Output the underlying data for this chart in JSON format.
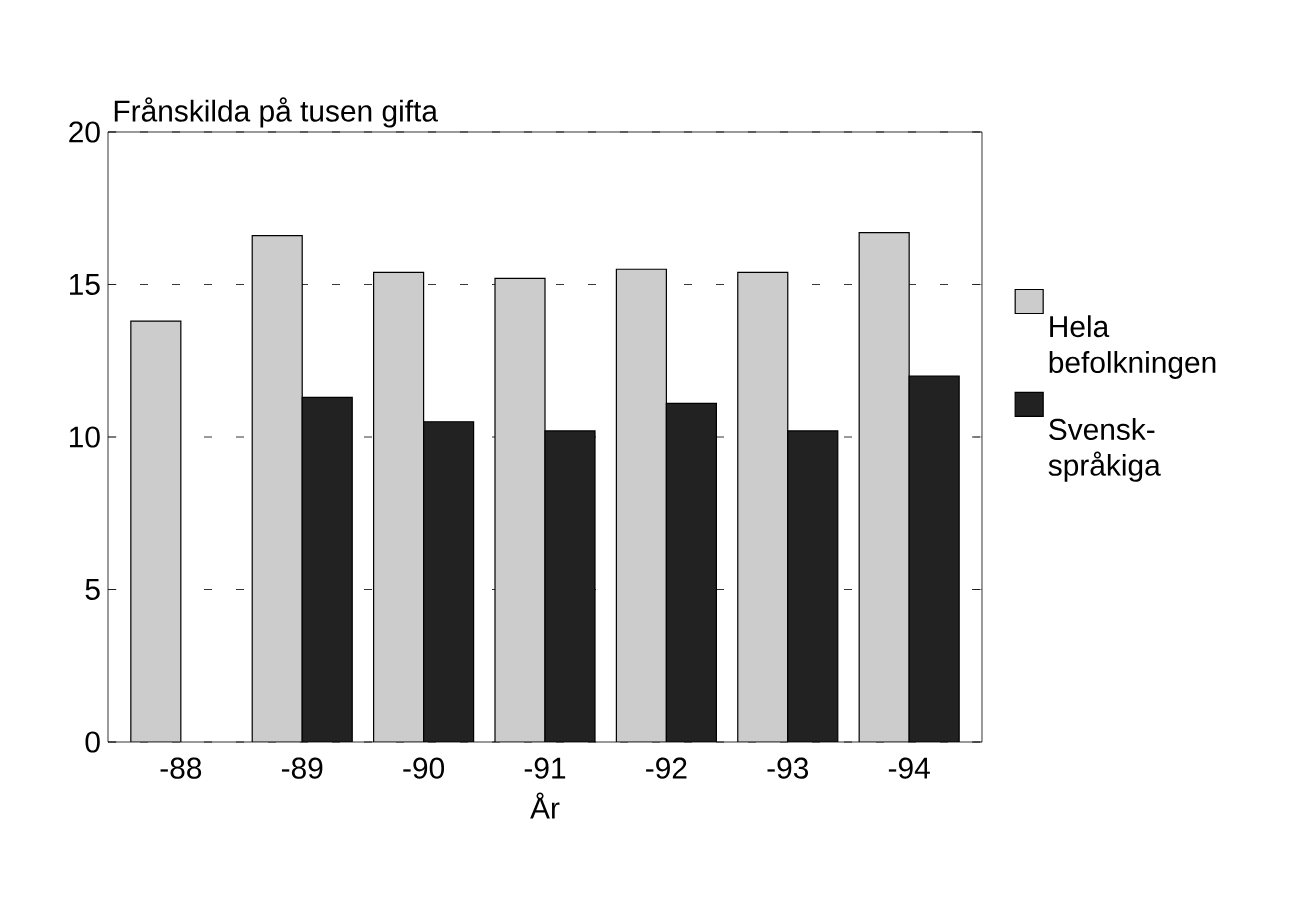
{
  "chart_data": {
    "type": "bar",
    "ylabel": "Frånskilda på tusen gifta",
    "xlabel": "År",
    "categories": [
      "-88",
      "-89",
      "-90",
      "-91",
      "-92",
      "-93",
      "-94"
    ],
    "series": [
      {
        "name": "Hela befolkningen",
        "color": "#cccccc",
        "values": [
          13.8,
          16.6,
          15.4,
          15.2,
          15.5,
          15.4,
          16.7
        ]
      },
      {
        "name": "Svensk-språkiga",
        "color": "#222222",
        "values": [
          null,
          11.3,
          10.5,
          10.2,
          11.1,
          10.2,
          12.0
        ]
      }
    ],
    "ylim": [
      0,
      20
    ],
    "yticks": [
      0,
      5,
      10,
      15,
      20
    ],
    "grid": "y",
    "legend": "right"
  }
}
